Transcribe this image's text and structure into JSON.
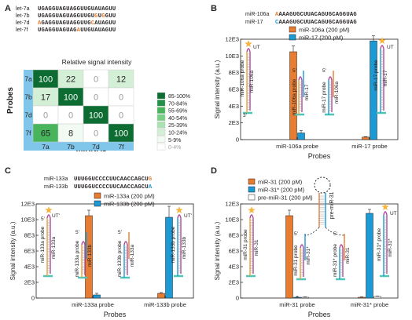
{
  "colors": {
    "orange": "#e87c30",
    "blue": "#1c9ad6",
    "heat_header": "#7fc6ea",
    "heat": [
      "#ffffff",
      "#f1faf3",
      "#d3efd6",
      "#ace1b2",
      "#7acf87",
      "#48b55d",
      "#239149",
      "#0c6c32"
    ],
    "probe_stem": "#f0a030",
    "probe_loop": "#b3479d",
    "target_blue": "#36a6d9",
    "base": "#4dc6b8",
    "star": "#f5b43b",
    "dark": "#231f20"
  },
  "panels": {
    "A": {
      "letter": "A",
      "seqs": [
        {
          "name": "let-7a",
          "seq": "UGAGGUAGUAGGUUGUAUAGUU",
          "highlights": []
        },
        {
          "name": "let-7b",
          "seq": "UGAGGUAGUAGGUUGUGUGGUU",
          "highlights": [
            16,
            18
          ]
        },
        {
          "name": "let-7d",
          "seq": "AGAGGUAGUAGGUUGCAUAGUU",
          "highlights": [
            0,
            15
          ]
        },
        {
          "name": "let-7f",
          "seq": "UGAGGUAGUAGAUUGUAUAGUU",
          "highlights": [
            11
          ]
        }
      ],
      "heatmap_title": "Relative signal intensity",
      "y_title": "Probes",
      "x_title": "miRNAs",
      "row_labels": [
        "7a",
        "7b",
        "7d",
        "7f"
      ],
      "col_labels": [
        "7a",
        "7b",
        "7d",
        "7f"
      ],
      "values": [
        [
          100,
          22,
          0,
          12
        ],
        [
          17,
          100,
          0,
          0
        ],
        [
          0,
          0,
          100,
          0
        ],
        [
          65,
          8,
          0,
          100
        ]
      ],
      "legend": [
        "85-100%",
        "70-84%",
        "55-69%",
        "40-54%",
        "25-39%",
        "10-24%",
        "5-9%",
        "0-4%"
      ]
    },
    "B": {
      "letter": "B",
      "seqs": [
        {
          "name": "miR-106a",
          "seq": "AAAAGUGCUUACAGUGCAGGUAG",
          "highlights": [
            0
          ]
        },
        {
          "name": "miR-17",
          "seq": "CAAAGUGCUUACAGUGCAGGUAG",
          "highlights": [
            0
          ]
        }
      ],
      "probe_labels": [
        "miR-106a probe",
        "miR-106a",
        "miR-106a probe",
        "miR-17",
        "miR-17 probe",
        "miR-106a",
        "miR-17 probe",
        "miR-17"
      ]
    },
    "C": {
      "letter": "C",
      "seqs": [
        {
          "name": "miR-133a",
          "seq": "UUUGGUCCCCUUCAACCAGCUG",
          "highlights": [
            21
          ]
        },
        {
          "name": "miR-133b",
          "seq": "UUUGGUCCCCUUCAACCAGCUA",
          "highlights": [
            21
          ]
        }
      ],
      "probe_labels": [
        "miR-133a probe",
        "miR-133a",
        "miR-133a probe",
        "miR-133b",
        "miR-133b probe",
        "miR-133a",
        "miR-133b probe",
        "miR-133b"
      ]
    },
    "D": {
      "letter": "D",
      "probe_labels": [
        "miR-31 probe",
        "miR-31",
        "miR-31 probe",
        "miR-31*",
        "miR-31* probe",
        "miR-31",
        "miR-31* probe",
        "miR-31*"
      ],
      "hairpin_label": "pre-miR-31"
    }
  },
  "marks": {
    "five": "5'",
    "three": "3'",
    "ut": "UT",
    "ut_prime": "UT'"
  },
  "chart_data": [
    {
      "panel": "B",
      "type": "bar",
      "categories": [
        "miR-106a probe",
        "miR-17 probe"
      ],
      "series": [
        {
          "name": "miR-106a (200 pM)",
          "values": [
            10.5,
            0.3
          ],
          "errors": [
            0.7,
            0.05
          ]
        },
        {
          "name": "miR-17 (200 pM)",
          "values": [
            0.8,
            11.8
          ],
          "errors": [
            0.3,
            0.6
          ]
        }
      ],
      "xlabel": "Probes",
      "ylabel": "Signal intensity (a.u.)",
      "ylim": [
        0,
        12
      ],
      "yticks": [
        "0",
        "2E3",
        "4E3",
        "6E3",
        "8E3",
        "10E3",
        "12E3"
      ]
    },
    {
      "panel": "C",
      "type": "bar",
      "categories": [
        "miR-133a probe",
        "miR-133b probe"
      ],
      "series": [
        {
          "name": "miR-133a (200 pM)",
          "values": [
            10.5,
            0.6
          ],
          "errors": [
            0.7,
            0.1
          ]
        },
        {
          "name": "miR-133b (200 pM)",
          "values": [
            0.4,
            10.3
          ],
          "errors": [
            0.2,
            1.4
          ]
        }
      ],
      "xlabel": "Probes",
      "ylabel": "Signal intensity (a.u.)",
      "ylim": [
        0,
        12
      ],
      "yticks": [
        "0",
        "2E3",
        "4E3",
        "6E3",
        "8E3",
        "10E3",
        "12E3"
      ]
    },
    {
      "panel": "D",
      "type": "bar",
      "categories": [
        "miR-31 probe",
        "miR-31* probe"
      ],
      "series": [
        {
          "name": "miR-31 (200 pM)",
          "values": [
            10.5,
            0.1
          ],
          "errors": [
            0.7,
            0.05
          ]
        },
        {
          "name": "miR-31* (200 pM)",
          "values": [
            0.1,
            10.8
          ],
          "errors": [
            0.05,
            0.5
          ]
        },
        {
          "name": "pre-miR-31 (200 pM)",
          "values": [
            0.1,
            0.2
          ],
          "errors": [
            0.05,
            0.05
          ]
        }
      ],
      "xlabel": "Probes",
      "ylabel": "Signal intensity (a.u.)",
      "ylim": [
        0,
        12
      ],
      "yticks": [
        "0",
        "2E3",
        "4E3",
        "6E3",
        "8E3",
        "10E3",
        "12E3"
      ]
    }
  ]
}
